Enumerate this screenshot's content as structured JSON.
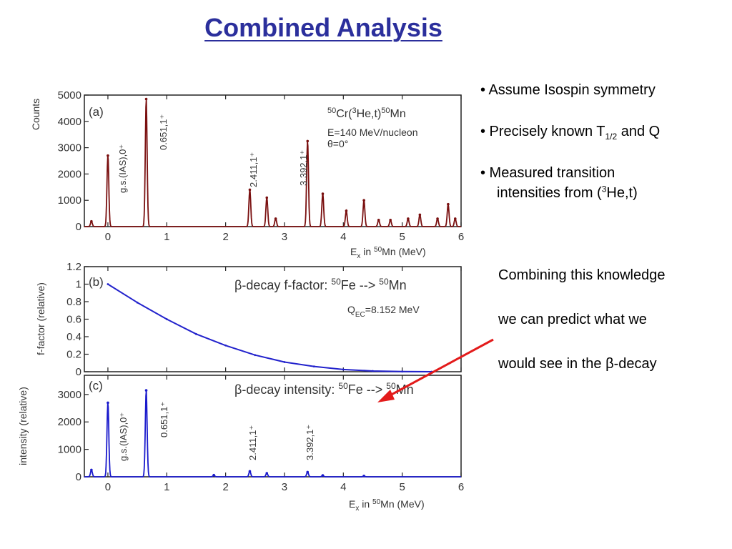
{
  "slide": {
    "title": "Combined Analysis",
    "bullets": [
      {
        "text": "• Assume Isospin symmetry"
      },
      {
        "pre": "• Precisely known T",
        "sub": "1/2",
        "post": " and Q"
      },
      {
        "line1": "• Measured transition",
        "pre": "intensities from (",
        "sup": "3",
        "post": "He,t)"
      }
    ],
    "combining": [
      "Combining this knowledge",
      "we can predict what we",
      "would see in the β-decay"
    ]
  },
  "colors": {
    "title": "#2b2f9c",
    "spectrum_a": "#7a1010",
    "curve_b": "#2222cc",
    "spectrum_c": "#1a1acc",
    "arrow": "#e31b1b"
  },
  "chart_data": [
    {
      "id": "a",
      "type": "line",
      "panel_label": "(a)",
      "reaction": {
        "pre1": "50",
        "pre2": "Cr(",
        "pre3": "3",
        "pre4": "He,t)",
        "pre5": "50",
        "pre6": "Mn"
      },
      "annotations": [
        "E=140 MeV/nucleon",
        "θ=0°"
      ],
      "ylabel": "Counts",
      "xlabel": {
        "pre": "E",
        "sub": "x",
        "mid": " in ",
        "sup": "50",
        "post": "Mn  (MeV)"
      },
      "xlim": [
        -0.4,
        6
      ],
      "ylim": [
        0,
        5000
      ],
      "xticks": [
        "0",
        "1",
        "2",
        "3",
        "4",
        "5",
        "6"
      ],
      "yticks": [
        "0",
        "1000",
        "2000",
        "3000",
        "4000",
        "5000"
      ],
      "peak_labels": [
        "g.s.(IAS),0⁺",
        "0.651,1⁺",
        "2.411,1⁺",
        "3.392,1⁺"
      ],
      "peaks": [
        {
          "x": -0.28,
          "y": 200
        },
        {
          "x": 0.0,
          "y": 2700
        },
        {
          "x": 0.651,
          "y": 4850
        },
        {
          "x": 2.411,
          "y": 1400
        },
        {
          "x": 2.7,
          "y": 1100
        },
        {
          "x": 2.85,
          "y": 300
        },
        {
          "x": 3.392,
          "y": 3250
        },
        {
          "x": 3.65,
          "y": 1250
        },
        {
          "x": 4.05,
          "y": 600
        },
        {
          "x": 4.35,
          "y": 1000
        },
        {
          "x": 4.6,
          "y": 250
        },
        {
          "x": 4.8,
          "y": 250
        },
        {
          "x": 5.1,
          "y": 300
        },
        {
          "x": 5.3,
          "y": 450
        },
        {
          "x": 5.6,
          "y": 300
        },
        {
          "x": 5.78,
          "y": 850
        },
        {
          "x": 5.9,
          "y": 300
        }
      ]
    },
    {
      "id": "b",
      "type": "line",
      "panel_label": "(b)",
      "title_parts": {
        "pre": "β-decay f-factor:  ",
        "s1": "50",
        "mid": "Fe --> ",
        "s2": "50",
        "post": "Mn"
      },
      "annotation": {
        "pre": "Q",
        "sub": "EC",
        "post": "=8.152 MeV"
      },
      "ylabel": "f-factor (relative)",
      "xlim": [
        -0.4,
        6
      ],
      "ylim": [
        0,
        1.2
      ],
      "yticks": [
        "0",
        "0.2",
        "0.4",
        "0.6",
        "0.8",
        "1",
        "1.2"
      ],
      "x": [
        0,
        0.5,
        1,
        1.5,
        2,
        2.5,
        3,
        3.5,
        4,
        4.5,
        5,
        5.5
      ],
      "y": [
        1.0,
        0.79,
        0.6,
        0.43,
        0.3,
        0.19,
        0.11,
        0.06,
        0.025,
        0.008,
        0.002,
        0.0
      ]
    },
    {
      "id": "c",
      "type": "line",
      "panel_label": "(c)",
      "title_parts": {
        "pre": "β-decay intensity:  ",
        "s1": "50",
        "mid": "Fe --> ",
        "s2": "50",
        "post": "Mn"
      },
      "ylabel": "intensity (relative)",
      "xlabel": {
        "pre": "E",
        "sub": "x",
        "mid": " in ",
        "sup": "50",
        "post": "Mn  (MeV)"
      },
      "xlim": [
        -0.4,
        6
      ],
      "ylim": [
        0,
        3700
      ],
      "xticks": [
        "0",
        "1",
        "2",
        "3",
        "4",
        "5",
        "6"
      ],
      "yticks": [
        "0",
        "1000",
        "2000",
        "3000"
      ],
      "peak_labels": [
        "g.s.(IAS),0⁺",
        "0.651,1⁺",
        "2.411,1⁺",
        "3.392,1⁺"
      ],
      "peaks": [
        {
          "x": -0.28,
          "y": 250
        },
        {
          "x": 0.0,
          "y": 2700
        },
        {
          "x": 0.651,
          "y": 3150
        },
        {
          "x": 1.8,
          "y": 60
        },
        {
          "x": 2.411,
          "y": 200
        },
        {
          "x": 2.7,
          "y": 130
        },
        {
          "x": 3.392,
          "y": 170
        },
        {
          "x": 3.65,
          "y": 50
        },
        {
          "x": 4.35,
          "y": 30
        }
      ]
    }
  ]
}
